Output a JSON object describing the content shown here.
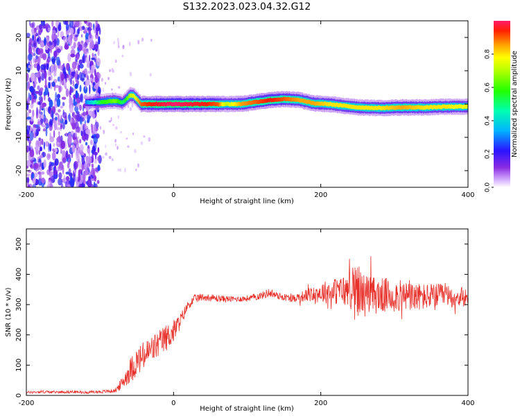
{
  "figure_title": "S132.2023.023.04.32.G12",
  "chart_data": [
    {
      "type": "heatmap",
      "name": "spectrogram",
      "xlabel": "Height of straight line (km)",
      "ylabel": "Frequency (Hz)",
      "xlim": [
        -200,
        400
      ],
      "ylim": [
        -25,
        25
      ],
      "x_ticks": [
        -200,
        0,
        200,
        400
      ],
      "y_ticks": [
        -20,
        -10,
        0,
        10,
        20
      ],
      "colorbar": {
        "label": "Normalized spectral amplitude",
        "range": [
          0.0,
          1.0
        ],
        "ticks": [
          "0.0",
          "0.2",
          "0.4",
          "0.6",
          "0.8"
        ]
      },
      "noise_region_x": [
        -200,
        -100
      ],
      "ridge": [
        {
          "x": -120,
          "freq": 0.5,
          "amp": 0.3
        },
        {
          "x": -100,
          "freq": 0.6,
          "amp": 0.55
        },
        {
          "x": -90,
          "freq": 0.8,
          "amp": 0.6
        },
        {
          "x": -80,
          "freq": 1.0,
          "amp": 0.65
        },
        {
          "x": -70,
          "freq": 0.4,
          "amp": 0.5
        },
        {
          "x": -60,
          "freq": 2.6,
          "amp": 0.7
        },
        {
          "x": -55,
          "freq": 2.5,
          "amp": 0.75
        },
        {
          "x": -45,
          "freq": 0.0,
          "amp": 0.9
        },
        {
          "x": -30,
          "freq": 0.0,
          "amp": 0.95
        },
        {
          "x": 0,
          "freq": 0.0,
          "amp": 1.0
        },
        {
          "x": 40,
          "freq": 0.0,
          "amp": 0.95
        },
        {
          "x": 60,
          "freq": 0.0,
          "amp": 0.9
        },
        {
          "x": 70,
          "freq": 0.0,
          "amp": 0.7
        },
        {
          "x": 90,
          "freq": 0.0,
          "amp": 0.85
        },
        {
          "x": 110,
          "freq": 0.6,
          "amp": 0.9
        },
        {
          "x": 130,
          "freq": 1.2,
          "amp": 0.95
        },
        {
          "x": 150,
          "freq": 1.5,
          "amp": 0.9
        },
        {
          "x": 170,
          "freq": 1.2,
          "amp": 0.85
        },
        {
          "x": 190,
          "freq": 0.2,
          "amp": 0.85
        },
        {
          "x": 210,
          "freq": 0.0,
          "amp": 0.8
        },
        {
          "x": 230,
          "freq": -0.5,
          "amp": 0.8
        },
        {
          "x": 250,
          "freq": -1.0,
          "amp": 0.8
        },
        {
          "x": 280,
          "freq": -1.2,
          "amp": 0.8
        },
        {
          "x": 310,
          "freq": -1.0,
          "amp": 0.85
        },
        {
          "x": 340,
          "freq": -1.0,
          "amp": 0.8
        },
        {
          "x": 370,
          "freq": -0.8,
          "amp": 0.8
        },
        {
          "x": 400,
          "freq": -0.8,
          "amp": 0.75
        }
      ]
    },
    {
      "type": "line",
      "name": "snr",
      "xlabel": "Height of straight line (km)",
      "ylabel": "SNR (10 * v/v)",
      "xlim": [
        -200,
        400
      ],
      "ylim": [
        0,
        550
      ],
      "x_ticks": [
        -200,
        0,
        200,
        400
      ],
      "y_ticks": [
        0,
        100,
        200,
        300,
        400,
        500
      ],
      "color": "#e8302a",
      "series": [
        {
          "x": [
            -200,
            -180,
            -160,
            -140,
            -120,
            -100,
            -80,
            -70,
            -60,
            -50,
            -40,
            -30,
            -20,
            -10,
            0,
            10,
            20,
            30,
            40,
            60,
            80,
            100,
            120,
            130,
            140,
            160,
            180,
            200,
            220,
            240,
            250,
            260,
            280,
            300,
            320,
            340,
            360,
            380,
            400
          ],
          "y": [
            10,
            12,
            11,
            12,
            10,
            12,
            15,
            40,
            80,
            110,
            130,
            150,
            170,
            190,
            210,
            250,
            300,
            320,
            325,
            320,
            318,
            320,
            330,
            340,
            330,
            320,
            330,
            340,
            345,
            345,
            350,
            330,
            330,
            330,
            325,
            325,
            330,
            325,
            325
          ],
          "spread": [
            4,
            5,
            4,
            5,
            4,
            5,
            6,
            20,
            40,
            50,
            50,
            50,
            45,
            45,
            40,
            25,
            15,
            15,
            12,
            12,
            10,
            10,
            12,
            15,
            12,
            12,
            20,
            35,
            45,
            60,
            90,
            70,
            60,
            55,
            50,
            45,
            40,
            35,
            30
          ]
        }
      ]
    }
  ]
}
